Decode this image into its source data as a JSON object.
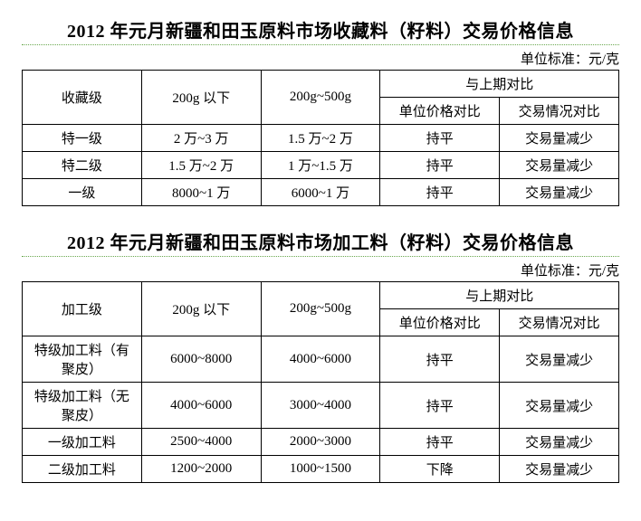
{
  "section1": {
    "title": "2012 年元月新疆和田玉原料市场收藏料（籽料）交易价格信息",
    "unit": "单位标准：元/克",
    "headers": {
      "grade": "收藏级",
      "w1": "200g 以下",
      "w2": "200g~500g",
      "compare": "与上期对比",
      "compare_price": "单位价格对比",
      "compare_trade": "交易情况对比"
    },
    "rows": [
      {
        "grade": "特一级",
        "w1": "2 万~3 万",
        "w2": "1.5 万~2 万",
        "c1": "持平",
        "c2": "交易量减少"
      },
      {
        "grade": "特二级",
        "w1": "1.5 万~2 万",
        "w2": "1 万~1.5 万",
        "c1": "持平",
        "c2": "交易量减少"
      },
      {
        "grade": "一级",
        "w1": "8000~1 万",
        "w2": "6000~1 万",
        "c1": "持平",
        "c2": "交易量减少"
      }
    ]
  },
  "section2": {
    "title": "2012 年元月新疆和田玉原料市场加工料（籽料）交易价格信息",
    "unit": "单位标准：元/克",
    "headers": {
      "grade": "加工级",
      "w1": "200g 以下",
      "w2": "200g~500g",
      "compare": "与上期对比",
      "compare_price": "单位价格对比",
      "compare_trade": "交易情况对比"
    },
    "rows": [
      {
        "grade": "特级加工料（有聚皮）",
        "w1": "6000~8000",
        "w2": "4000~6000",
        "c1": "持平",
        "c2": "交易量减少"
      },
      {
        "grade": "特级加工料（无聚皮）",
        "w1": "4000~6000",
        "w2": "3000~4000",
        "c1": "持平",
        "c2": "交易量减少"
      },
      {
        "grade": "一级加工料",
        "w1": "2500~4000",
        "w2": "2000~3000",
        "c1": "持平",
        "c2": "交易量减少"
      },
      {
        "grade": "二级加工料",
        "w1": "1200~2000",
        "w2": "1000~1500",
        "c1": "下降",
        "c2": "交易量减少"
      }
    ]
  }
}
